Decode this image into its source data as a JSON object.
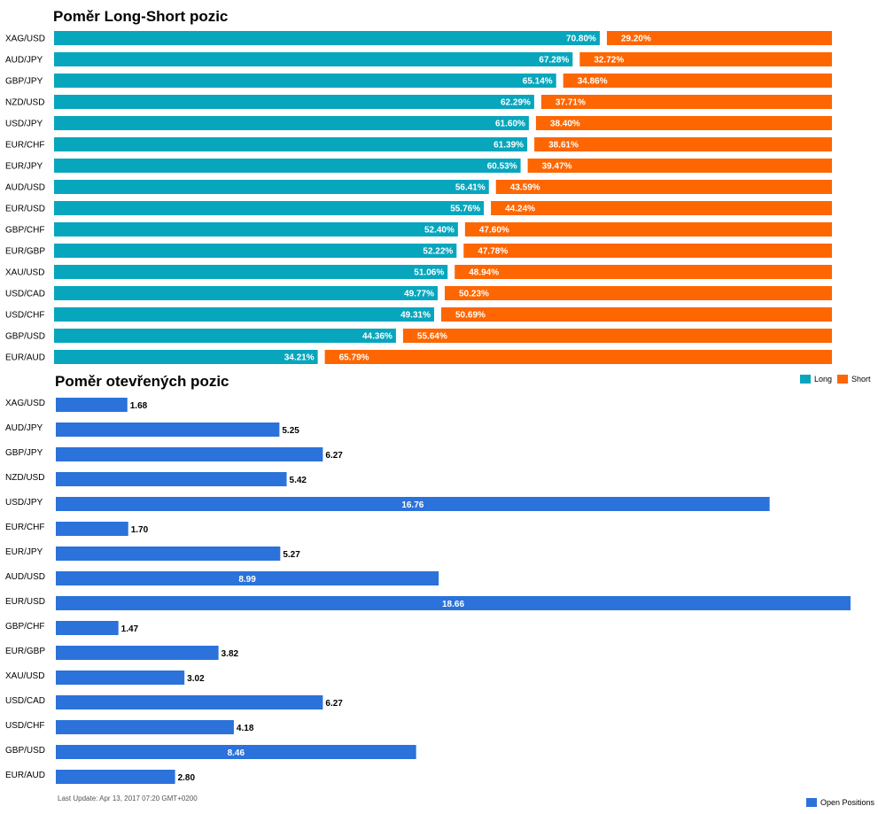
{
  "long_short": {
    "title": "Poměr Long-Short pozic",
    "legend": {
      "long": "Long",
      "short": "Short"
    }
  },
  "open_positions": {
    "title": "Poměr otevřených pozic",
    "legend": {
      "open": "Open Positions"
    }
  },
  "footer": {
    "last_update": "Last Update: Apr 13, 2017 07:20 GMT+0200"
  },
  "colors": {
    "long": "#07a6bd",
    "short": "#fd6600",
    "open": "#2b72da"
  },
  "chart_data": [
    {
      "type": "bar",
      "orientation": "horizontal",
      "stacked": true,
      "title": "Poměr Long-Short pozic",
      "categories": [
        "XAG/USD",
        "AUD/JPY",
        "GBP/JPY",
        "NZD/USD",
        "USD/JPY",
        "EUR/CHF",
        "EUR/JPY",
        "AUD/USD",
        "EUR/USD",
        "GBP/CHF",
        "EUR/GBP",
        "XAU/USD",
        "USD/CAD",
        "USD/CHF",
        "GBP/USD",
        "EUR/AUD"
      ],
      "series": [
        {
          "name": "Long",
          "values": [
            70.8,
            67.28,
            65.14,
            62.29,
            61.6,
            61.39,
            60.53,
            56.41,
            55.76,
            52.4,
            52.22,
            51.06,
            49.77,
            49.31,
            44.36,
            34.21
          ],
          "labels": [
            "70.80%",
            "67.28%",
            "65.14%",
            "62.29%",
            "61.60%",
            "61.39%",
            "60.53%",
            "56.41%",
            "55.76%",
            "52.40%",
            "52.22%",
            "51.06%",
            "49.77%",
            "49.31%",
            "44.36%",
            "34.21%"
          ]
        },
        {
          "name": "Short",
          "values": [
            29.2,
            32.72,
            34.86,
            37.71,
            38.4,
            38.61,
            39.47,
            43.59,
            44.24,
            47.6,
            47.78,
            48.94,
            50.23,
            50.69,
            55.64,
            65.79
          ],
          "labels": [
            "29.20%",
            "32.72%",
            "34.86%",
            "37.71%",
            "38.40%",
            "38.61%",
            "39.47%",
            "43.59%",
            "44.24%",
            "47.60%",
            "47.78%",
            "48.94%",
            "50.23%",
            "50.69%",
            "55.64%",
            "65.79%"
          ]
        }
      ],
      "xlim": [
        0,
        100
      ],
      "legend_position": "bottom-right",
      "grid": false
    },
    {
      "type": "bar",
      "orientation": "horizontal",
      "title": "Poměr otevřených pozic",
      "categories": [
        "XAG/USD",
        "AUD/JPY",
        "GBP/JPY",
        "NZD/USD",
        "USD/JPY",
        "EUR/CHF",
        "EUR/JPY",
        "AUD/USD",
        "EUR/USD",
        "GBP/CHF",
        "EUR/GBP",
        "XAU/USD",
        "USD/CAD",
        "USD/CHF",
        "GBP/USD",
        "EUR/AUD"
      ],
      "series": [
        {
          "name": "Open Positions",
          "values": [
            1.68,
            5.25,
            6.27,
            5.42,
            16.76,
            1.7,
            5.27,
            8.99,
            18.66,
            1.47,
            3.82,
            3.02,
            6.27,
            4.18,
            8.46,
            2.8
          ],
          "labels": [
            "1.68",
            "5.25",
            "6.27",
            "5.42",
            "16.76",
            "1.70",
            "5.27",
            "8.99",
            "18.66",
            "1.47",
            "3.82",
            "3.02",
            "6.27",
            "4.18",
            "8.46",
            "2.80"
          ]
        }
      ],
      "xlim": [
        0,
        18.66
      ],
      "legend_position": "bottom-right",
      "grid": false
    }
  ]
}
